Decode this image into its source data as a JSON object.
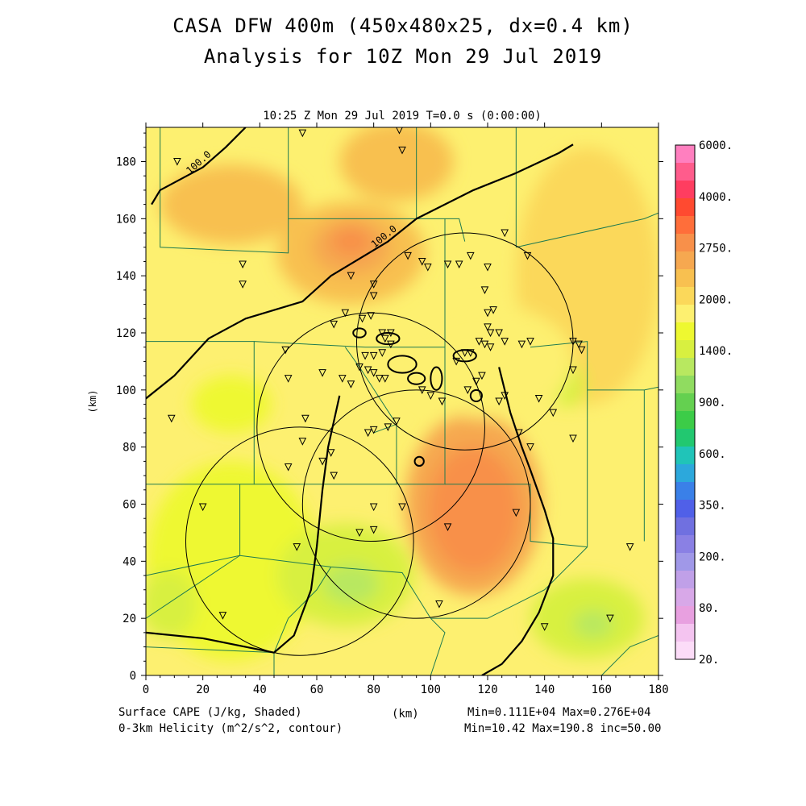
{
  "header": {
    "title_line1": "CASA DFW 400m (450x480x25, dx=0.4 km)",
    "title_line2": "Analysis for 10Z Mon 29 Jul 2019",
    "time_label": "10:25 Z Mon 29 Jul 2019    T=0.0 s (0:00:00)"
  },
  "footer": {
    "field1_label": "Surface CAPE (J/kg, Shaded)",
    "field2_label": "0-3km Helicity (m^2/s^2, contour)",
    "xunit": "(km)",
    "field1_stats": "Min=0.111E+04 Max=0.276E+04",
    "field2_stats": "Min=10.42 Max=190.8 inc=50.00"
  },
  "chart_data": {
    "type": "heatmap",
    "xlabel": "(km)",
    "ylabel": "(km)",
    "xlim": [
      0,
      180
    ],
    "ylim": [
      0,
      192
    ],
    "xticks": [
      0,
      20,
      40,
      60,
      80,
      100,
      120,
      140,
      160,
      180
    ],
    "yticks": [
      0,
      20,
      40,
      60,
      80,
      100,
      120,
      140,
      160,
      180
    ],
    "colorbar": {
      "labels": [
        "6000.",
        "4000.",
        "2750.",
        "2000.",
        "1400.",
        "900.",
        "600.",
        "350.",
        "200.",
        "80.",
        "20."
      ],
      "colors": [
        "#ff7fbf",
        "#ff5c8c",
        "#ff3d60",
        "#ff4a30",
        "#ff6e3a",
        "#f8904a",
        "#f6a850",
        "#f8c050",
        "#fbd85a",
        "#fdf070",
        "#eef830",
        "#d8f040",
        "#b8e860",
        "#90dc60",
        "#64d050",
        "#3ccc48",
        "#22c870",
        "#20c4b8",
        "#2ca8dc",
        "#3a80e8",
        "#5060e8",
        "#7070e0",
        "#8a80e4",
        "#a098e8",
        "#c0a0e8",
        "#d8a8e8",
        "#e8a0e0",
        "#f4c4f0",
        "#fcdcf8"
      ]
    },
    "cape_blobs": [
      {
        "x": 115,
        "y": 60,
        "rx": 24,
        "ry": 32,
        "color": "#f6a850"
      },
      {
        "x": 115,
        "y": 58,
        "rx": 16,
        "ry": 22,
        "color": "#f8904a"
      },
      {
        "x": 72,
        "y": 148,
        "rx": 26,
        "ry": 18,
        "color": "#f8c050"
      },
      {
        "x": 72,
        "y": 150,
        "rx": 14,
        "ry": 10,
        "color": "#f6a850"
      },
      {
        "x": 72,
        "y": 152,
        "rx": 7,
        "ry": 5,
        "color": "#f8904a"
      },
      {
        "x": 88,
        "y": 180,
        "rx": 20,
        "ry": 14,
        "color": "#f8c050"
      },
      {
        "x": 30,
        "y": 165,
        "rx": 25,
        "ry": 14,
        "color": "#f8c050"
      },
      {
        "x": 155,
        "y": 140,
        "rx": 25,
        "ry": 45,
        "color": "#fbd85a"
      },
      {
        "x": 30,
        "y": 40,
        "rx": 30,
        "ry": 35,
        "color": "#eef830"
      },
      {
        "x": 70,
        "y": 35,
        "rx": 24,
        "ry": 18,
        "color": "#d8f040"
      },
      {
        "x": 72,
        "y": 32,
        "rx": 10,
        "ry": 7,
        "color": "#b8e860"
      },
      {
        "x": 155,
        "y": 20,
        "rx": 20,
        "ry": 14,
        "color": "#d8f040"
      },
      {
        "x": 157,
        "y": 18,
        "rx": 7,
        "ry": 5,
        "color": "#b8e860"
      },
      {
        "x": 8,
        "y": 25,
        "rx": 10,
        "ry": 12,
        "color": "#d8f040"
      },
      {
        "x": 30,
        "y": 95,
        "rx": 14,
        "ry": 10,
        "color": "#eef830"
      },
      {
        "x": 148,
        "y": 102,
        "rx": 6,
        "ry": 8,
        "color": "#d8f040"
      },
      {
        "x": 120,
        "y": 110,
        "rx": 30,
        "ry": 20,
        "color": "#fdf070"
      }
    ],
    "helicity_contours": [
      {
        "label": "100.0",
        "points": [
          [
            0,
            97
          ],
          [
            10,
            105
          ],
          [
            22,
            118
          ],
          [
            35,
            125
          ],
          [
            55,
            131
          ],
          [
            65,
            140
          ],
          [
            85,
            152
          ],
          [
            95,
            160
          ],
          [
            115,
            170
          ],
          [
            130,
            176
          ],
          [
            145,
            183
          ],
          [
            150,
            186
          ]
        ]
      },
      {
        "label": "100.0",
        "points": [
          [
            2,
            165
          ],
          [
            5,
            170
          ],
          [
            20,
            178
          ],
          [
            28,
            185
          ],
          [
            35,
            192
          ]
        ]
      },
      {
        "label": "",
        "points": [
          [
            0,
            15
          ],
          [
            20,
            13
          ],
          [
            35,
            10
          ],
          [
            45,
            8
          ],
          [
            52,
            14
          ],
          [
            58,
            30
          ],
          [
            60,
            45
          ],
          [
            62,
            65
          ],
          [
            64,
            80
          ],
          [
            68,
            98
          ]
        ]
      },
      {
        "label": "",
        "points": [
          [
            118,
            0
          ],
          [
            125,
            4
          ],
          [
            132,
            12
          ],
          [
            138,
            22
          ],
          [
            143,
            35
          ],
          [
            143,
            48
          ],
          [
            140,
            58
          ],
          [
            135,
            72
          ],
          [
            132,
            80
          ],
          [
            128,
            92
          ],
          [
            124,
            108
          ]
        ]
      }
    ],
    "radar_circles": [
      {
        "x": 112,
        "y": 117,
        "r": 38
      },
      {
        "x": 79,
        "y": 87,
        "r": 40
      },
      {
        "x": 95,
        "y": 60,
        "r": 40
      },
      {
        "x": 54,
        "y": 47,
        "r": 40
      }
    ],
    "stations": [
      [
        11,
        180
      ],
      [
        55,
        190
      ],
      [
        89,
        191
      ],
      [
        90,
        184
      ],
      [
        34,
        144
      ],
      [
        34,
        137
      ],
      [
        72,
        140
      ],
      [
        80,
        137
      ],
      [
        80,
        133
      ],
      [
        79,
        126
      ],
      [
        76,
        125
      ],
      [
        92,
        147
      ],
      [
        97,
        145
      ],
      [
        99,
        143
      ],
      [
        106,
        144
      ],
      [
        110,
        144
      ],
      [
        114,
        147
      ],
      [
        120,
        143
      ],
      [
        126,
        155
      ],
      [
        134,
        147
      ],
      [
        119,
        135
      ],
      [
        122,
        128
      ],
      [
        120,
        127
      ],
      [
        120,
        122
      ],
      [
        121,
        120
      ],
      [
        124,
        120
      ],
      [
        126,
        117
      ],
      [
        132,
        116
      ],
      [
        135,
        117
      ],
      [
        150,
        117
      ],
      [
        152,
        116
      ],
      [
        153,
        114
      ],
      [
        117,
        117
      ],
      [
        119,
        116
      ],
      [
        121,
        115
      ],
      [
        109,
        110
      ],
      [
        112,
        113
      ],
      [
        114,
        113
      ],
      [
        83,
        120
      ],
      [
        86,
        120
      ],
      [
        84,
        118
      ],
      [
        86,
        116
      ],
      [
        83,
        113
      ],
      [
        80,
        112
      ],
      [
        77,
        112
      ],
      [
        70,
        127
      ],
      [
        66,
        123
      ],
      [
        49,
        114
      ],
      [
        50,
        104
      ],
      [
        62,
        106
      ],
      [
        69,
        104
      ],
      [
        72,
        102
      ],
      [
        75,
        108
      ],
      [
        78,
        107
      ],
      [
        80,
        106
      ],
      [
        82,
        104
      ],
      [
        84,
        104
      ],
      [
        97,
        100
      ],
      [
        100,
        98
      ],
      [
        104,
        96
      ],
      [
        113,
        100
      ],
      [
        116,
        103
      ],
      [
        118,
        105
      ],
      [
        124,
        96
      ],
      [
        126,
        98
      ],
      [
        138,
        97
      ],
      [
        143,
        92
      ],
      [
        150,
        107
      ],
      [
        150,
        83
      ],
      [
        9,
        90
      ],
      [
        56,
        90
      ],
      [
        55,
        82
      ],
      [
        65,
        78
      ],
      [
        62,
        75
      ],
      [
        66,
        70
      ],
      [
        50,
        73
      ],
      [
        88,
        89
      ],
      [
        85,
        87
      ],
      [
        80,
        86
      ],
      [
        78,
        85
      ],
      [
        131,
        85
      ],
      [
        135,
        80
      ],
      [
        20,
        59
      ],
      [
        80,
        59
      ],
      [
        90,
        59
      ],
      [
        130,
        57
      ],
      [
        75,
        50
      ],
      [
        80,
        51
      ],
      [
        106,
        52
      ],
      [
        53,
        45
      ],
      [
        27,
        21
      ],
      [
        103,
        25
      ],
      [
        140,
        17
      ],
      [
        163,
        20
      ],
      [
        170,
        45
      ]
    ]
  }
}
